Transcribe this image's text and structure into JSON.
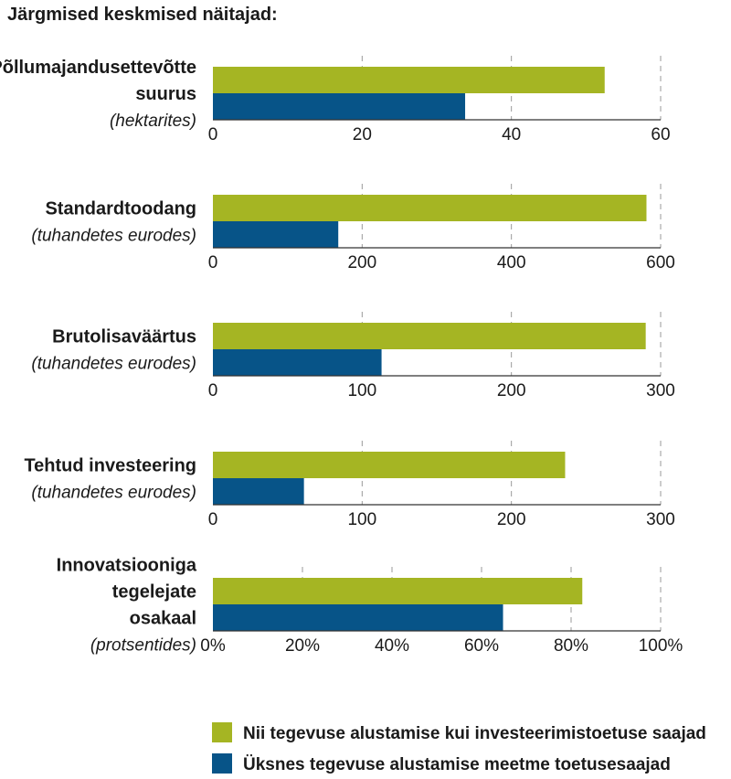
{
  "chart_data": {
    "type": "bar",
    "orientation": "horizontal",
    "title": "Järgmised keskmised näitajad:",
    "legend": [
      {
        "label": "Nii tegevuse alustamise kui investeerimistoetuse saajad",
        "color": "#a5b523"
      },
      {
        "label": "Üksnes tegevuse alustamise meetme toetusesaajad",
        "color": "#075488"
      }
    ],
    "legend_position": "bottom",
    "grid": true,
    "panels": [
      {
        "title_lines": [
          "Põllumajandusettevõtte",
          "suurus"
        ],
        "unit": "(hektarites)",
        "values": [
          52.5,
          33.8
        ],
        "xlim": [
          0,
          60
        ],
        "ticks": [
          "0",
          "20",
          "40",
          "60"
        ],
        "tick_values": [
          0,
          20,
          40,
          60
        ]
      },
      {
        "title_lines": [
          "Standardtoodang"
        ],
        "unit": "(tuhandetes eurodes)",
        "values": [
          581,
          168
        ],
        "xlim": [
          0,
          600
        ],
        "ticks": [
          "0",
          "200",
          "400",
          "600"
        ],
        "tick_values": [
          0,
          200,
          400,
          600
        ]
      },
      {
        "title_lines": [
          "Brutolisaväärtus"
        ],
        "unit": "(tuhandetes eurodes)",
        "values": [
          290,
          113
        ],
        "xlim": [
          0,
          300
        ],
        "ticks": [
          "0",
          "100",
          "200",
          "300"
        ],
        "tick_values": [
          0,
          100,
          200,
          300
        ]
      },
      {
        "title_lines": [
          "Tehtud investeering"
        ],
        "unit": "(tuhandetes eurodes)",
        "values": [
          236,
          61
        ],
        "xlim": [
          0,
          300
        ],
        "ticks": [
          "0",
          "100",
          "200",
          "300"
        ],
        "tick_values": [
          0,
          100,
          200,
          300
        ]
      },
      {
        "title_lines": [
          "Innovatsiooniga",
          "tegelejate",
          "osakaal"
        ],
        "unit": "(protsentides)",
        "values": [
          82.5,
          64.8
        ],
        "xlim": [
          0,
          100
        ],
        "ticks": [
          "0%",
          "20%",
          "40%",
          "60%",
          "80%",
          "100%"
        ],
        "tick_values": [
          0,
          20,
          40,
          60,
          80,
          100
        ]
      }
    ]
  }
}
